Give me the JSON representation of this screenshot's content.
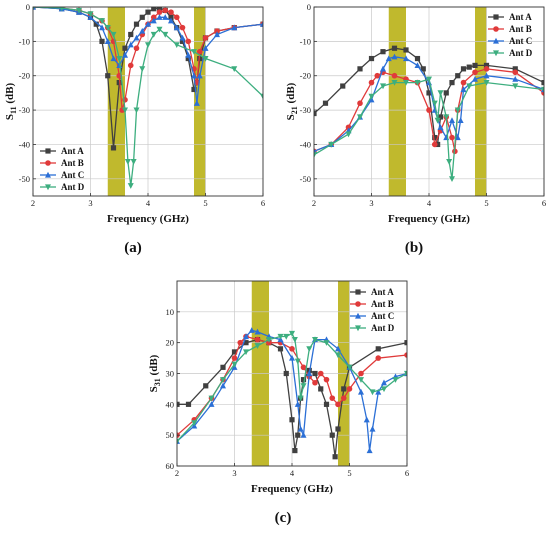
{
  "chart_data": [
    {
      "type": "line",
      "panel_label": "(a)",
      "xlabel": "Frequency (GHz)",
      "ylabel_main": "S",
      "ylabel_sub": "11",
      "ylabel_unit": " (dB)",
      "xlim": [
        2,
        6
      ],
      "ylim": [
        -55,
        0
      ],
      "xticks": [
        2,
        3,
        4,
        5,
        6
      ],
      "yticks": [
        0,
        -10,
        -20,
        -30,
        -40,
        -50
      ],
      "bands": [
        [
          3.3,
          3.6
        ],
        [
          4.8,
          5.0
        ]
      ],
      "grid": true,
      "legend_position": "bottom-left",
      "series": [
        {
          "name": "Ant A",
          "color": "#404040",
          "marker": "square",
          "x": [
            2.0,
            2.5,
            2.8,
            3.0,
            3.1,
            3.2,
            3.3,
            3.4,
            3.5,
            3.6,
            3.7,
            3.8,
            3.9,
            4.0,
            4.1,
            4.2,
            4.3,
            4.4,
            4.5,
            4.6,
            4.7,
            4.8,
            4.85,
            4.9,
            5.0,
            5.2,
            5.5,
            6.0
          ],
          "y": [
            0,
            -0.5,
            -1.5,
            -3,
            -5,
            -10,
            -20,
            -41,
            -22,
            -12,
            -8,
            -5,
            -3,
            -1.5,
            -0.5,
            -0.3,
            -1,
            -3,
            -6,
            -10,
            -15,
            -24,
            -22,
            -15,
            -9,
            -7,
            -6,
            -5
          ]
        },
        {
          "name": "Ant B",
          "color": "#e03a3a",
          "marker": "circle",
          "x": [
            2.0,
            2.5,
            2.8,
            3.0,
            3.2,
            3.3,
            3.4,
            3.5,
            3.55,
            3.6,
            3.7,
            3.8,
            3.9,
            4.0,
            4.1,
            4.2,
            4.3,
            4.4,
            4.5,
            4.6,
            4.7,
            4.8,
            4.85,
            4.9,
            5.0,
            5.2,
            5.5,
            6.0
          ],
          "y": [
            0,
            -0.3,
            -1,
            -2,
            -4,
            -6,
            -10,
            -20,
            -30,
            -27,
            -17,
            -12,
            -8,
            -5,
            -3,
            -1.5,
            -1,
            -1.5,
            -3,
            -6,
            -10,
            -18,
            -22,
            -13,
            -9,
            -7,
            -6,
            -5
          ]
        },
        {
          "name": "Ant C",
          "color": "#2b6fd6",
          "marker": "triangle",
          "x": [
            2.0,
            2.5,
            2.8,
            3.0,
            3.2,
            3.3,
            3.4,
            3.5,
            3.6,
            3.7,
            3.8,
            3.9,
            4.0,
            4.1,
            4.2,
            4.3,
            4.4,
            4.5,
            4.6,
            4.7,
            4.8,
            4.85,
            4.9,
            5.0,
            5.2,
            5.5,
            6.0
          ],
          "y": [
            0,
            -0.5,
            -1.5,
            -3,
            -6,
            -10,
            -15,
            -17,
            -14,
            -11,
            -9,
            -7,
            -5,
            -4,
            -3,
            -3,
            -4,
            -6,
            -9,
            -14,
            -20,
            -28,
            -20,
            -12,
            -8,
            -6,
            -5
          ]
        },
        {
          "name": "Ant D",
          "color": "#3dae7f",
          "marker": "triangle-down",
          "x": [
            2.0,
            2.5,
            2.8,
            3.0,
            3.2,
            3.3,
            3.4,
            3.5,
            3.6,
            3.65,
            3.7,
            3.75,
            3.8,
            3.9,
            4.0,
            4.1,
            4.2,
            4.3,
            4.5,
            4.8,
            5.0,
            5.5,
            6.0
          ],
          "y": [
            0,
            -0.3,
            -1,
            -2,
            -4,
            -6,
            -8,
            -15,
            -30,
            -45,
            -52,
            -45,
            -30,
            -18,
            -11,
            -8,
            -6.5,
            -8,
            -11,
            -13,
            -15,
            -18,
            -26
          ]
        }
      ]
    },
    {
      "type": "line",
      "panel_label": "(b)",
      "xlabel": "Frequency (GHz)",
      "ylabel_main": "S",
      "ylabel_sub": "21",
      "ylabel_unit": " (dB)",
      "xlim": [
        2,
        6
      ],
      "ylim": [
        -55,
        0
      ],
      "xticks": [
        2,
        3,
        4,
        5,
        6
      ],
      "yticks": [
        0,
        -10,
        -20,
        -30,
        -40,
        -50
      ],
      "bands": [
        [
          3.3,
          3.6
        ],
        [
          4.8,
          5.0
        ]
      ],
      "grid": true,
      "legend_position": "top-right",
      "series": [
        {
          "name": "Ant A",
          "color": "#404040",
          "marker": "square",
          "x": [
            2.0,
            2.2,
            2.5,
            2.8,
            3.0,
            3.2,
            3.4,
            3.6,
            3.8,
            3.9,
            4.0,
            4.1,
            4.15,
            4.2,
            4.3,
            4.4,
            4.5,
            4.6,
            4.7,
            4.8,
            5.0,
            5.5,
            6.0
          ],
          "y": [
            -31,
            -28,
            -23,
            -18,
            -15,
            -13,
            -12,
            -12.5,
            -15,
            -18,
            -25,
            -38,
            -40,
            -32,
            -25,
            -22,
            -20,
            -18,
            -17.5,
            -17,
            -17,
            -18,
            -22
          ]
        },
        {
          "name": "Ant B",
          "color": "#e03a3a",
          "marker": "circle",
          "x": [
            2.0,
            2.3,
            2.6,
            2.8,
            3.0,
            3.1,
            3.2,
            3.4,
            3.6,
            3.8,
            4.0,
            4.1,
            4.2,
            4.3,
            4.4,
            4.45,
            4.5,
            4.6,
            4.8,
            5.0,
            5.5,
            6.0
          ],
          "y": [
            -42,
            -40,
            -35,
            -28,
            -22,
            -20,
            -19,
            -20,
            -21,
            -22,
            -30,
            -40,
            -36,
            -32,
            -38,
            -42,
            -30,
            -22,
            -19,
            -18,
            -19,
            -25
          ]
        },
        {
          "name": "Ant C",
          "color": "#2b6fd6",
          "marker": "triangle",
          "x": [
            2.0,
            2.3,
            2.6,
            2.8,
            3.0,
            3.2,
            3.3,
            3.4,
            3.6,
            3.8,
            4.0,
            4.1,
            4.2,
            4.3,
            4.4,
            4.5,
            4.55,
            4.6,
            4.8,
            5.0,
            5.5,
            6.0
          ],
          "y": [
            -42,
            -40,
            -36,
            -32,
            -27,
            -18,
            -15,
            -14.5,
            -15,
            -17,
            -22,
            -30,
            -35,
            -38,
            -33,
            -38,
            -33,
            -24,
            -21,
            -20,
            -21,
            -24
          ]
        },
        {
          "name": "Ant D",
          "color": "#3dae7f",
          "marker": "triangle-down",
          "x": [
            2.0,
            2.3,
            2.6,
            2.8,
            3.0,
            3.2,
            3.4,
            3.6,
            3.8,
            4.0,
            4.1,
            4.15,
            4.2,
            4.3,
            4.35,
            4.4,
            4.5,
            4.7,
            5.0,
            5.5,
            6.0
          ],
          "y": [
            -43,
            -40,
            -37,
            -32,
            -26,
            -23,
            -22,
            -22,
            -22,
            -21,
            -28,
            -33,
            -25,
            -32,
            -45,
            -50,
            -30,
            -23,
            -22,
            -23,
            -24
          ]
        }
      ]
    },
    {
      "type": "line",
      "panel_label": "(c)",
      "xlabel": "Frequency (GHz)",
      "ylabel_main": "S",
      "ylabel_sub": "31",
      "ylabel_unit": " (dB)",
      "xlim": [
        2,
        6
      ],
      "ylim": [
        -60,
        0
      ],
      "xticks": [
        2,
        3,
        4,
        5,
        6
      ],
      "yticks": [
        -10,
        -20,
        -30,
        -40,
        -50,
        -60
      ],
      "ytick_labels": [
        "10",
        "20",
        "30",
        "40",
        "50",
        "60"
      ],
      "bands": [
        [
          3.3,
          3.6
        ],
        [
          4.8,
          5.0
        ]
      ],
      "grid": true,
      "legend_position": "top-right",
      "series": [
        {
          "name": "Ant A",
          "color": "#404040",
          "marker": "square",
          "x": [
            2.0,
            2.2,
            2.5,
            2.8,
            3.0,
            3.2,
            3.4,
            3.6,
            3.8,
            3.9,
            4.0,
            4.05,
            4.1,
            4.15,
            4.2,
            4.3,
            4.4,
            4.5,
            4.6,
            4.7,
            4.75,
            4.8,
            4.9,
            5.0,
            5.5,
            6.0
          ],
          "y": [
            -40,
            -40,
            -34,
            -28,
            -23,
            -20,
            -19,
            -20,
            -22,
            -30,
            -45,
            -55,
            -50,
            -38,
            -32,
            -29,
            -30,
            -35,
            -40,
            -50,
            -57,
            -48,
            -35,
            -28,
            -22,
            -20
          ]
        },
        {
          "name": "Ant B",
          "color": "#e03a3a",
          "marker": "circle",
          "x": [
            2.0,
            2.3,
            2.6,
            2.8,
            3.0,
            3.1,
            3.2,
            3.4,
            3.6,
            3.8,
            4.0,
            4.2,
            4.3,
            4.4,
            4.5,
            4.6,
            4.7,
            4.8,
            4.9,
            5.0,
            5.2,
            5.5,
            6.0
          ],
          "y": [
            -50,
            -45,
            -38,
            -32,
            -25,
            -20,
            -18,
            -19,
            -20,
            -20,
            -22,
            -28,
            -31,
            -33,
            -30,
            -32,
            -38,
            -40,
            -38,
            -35,
            -30,
            -25,
            -24
          ]
        },
        {
          "name": "Ant C",
          "color": "#2b6fd6",
          "marker": "triangle",
          "x": [
            2.0,
            2.3,
            2.6,
            2.8,
            3.0,
            3.2,
            3.3,
            3.4,
            3.6,
            3.8,
            4.0,
            4.1,
            4.15,
            4.2,
            4.3,
            4.4,
            4.6,
            4.8,
            5.0,
            5.2,
            5.3,
            5.35,
            5.4,
            5.5,
            5.6,
            5.8,
            6.0
          ],
          "y": [
            -52,
            -47,
            -40,
            -34,
            -28,
            -18,
            -16,
            -16.5,
            -18,
            -19,
            -25,
            -40,
            -48,
            -50,
            -30,
            -19,
            -19,
            -22,
            -28,
            -36,
            -45,
            -55,
            -48,
            -36,
            -33,
            -31,
            -30
          ]
        },
        {
          "name": "Ant D",
          "color": "#3dae7f",
          "marker": "triangle-down",
          "x": [
            2.0,
            2.3,
            2.6,
            2.8,
            3.0,
            3.2,
            3.4,
            3.6,
            3.8,
            3.9,
            4.0,
            4.05,
            4.1,
            4.15,
            4.2,
            4.3,
            4.4,
            4.6,
            4.8,
            5.0,
            5.2,
            5.4,
            5.6,
            5.8,
            6.0
          ],
          "y": [
            -52,
            -46,
            -38,
            -32,
            -27,
            -23,
            -21,
            -19,
            -18,
            -18,
            -17,
            -19,
            -26,
            -38,
            -34,
            -22,
            -19,
            -20,
            -24,
            -28,
            -32,
            -36,
            -35,
            -32,
            -30
          ]
        }
      ]
    }
  ]
}
